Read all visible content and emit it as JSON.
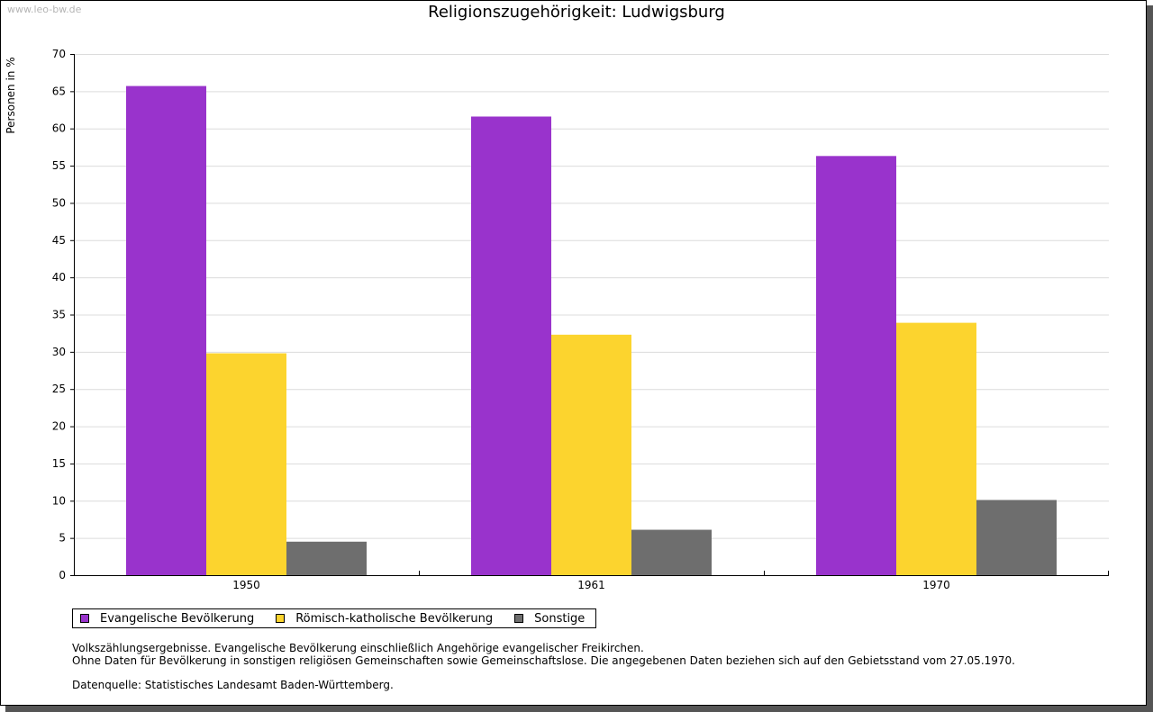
{
  "watermark": "www.leo-bw.de",
  "chart_data": {
    "type": "bar",
    "title": "Religionszugehörigkeit: Ludwigsburg",
    "xlabel": "",
    "ylabel": "Personen in %",
    "ylim": [
      0,
      70
    ],
    "yticks": [
      0,
      5,
      10,
      15,
      20,
      25,
      30,
      35,
      40,
      45,
      50,
      55,
      60,
      65,
      70
    ],
    "grid": true,
    "legend_position": "bottom-left",
    "categories": [
      "1950",
      "1961",
      "1970"
    ],
    "series": [
      {
        "name": "Evangelische Bevölkerung",
        "color": "#9933cc",
        "values": [
          65.7,
          61.6,
          56.3
        ]
      },
      {
        "name": "Römisch-katholische Bevölkerung",
        "color": "#fcd42e",
        "values": [
          29.8,
          32.3,
          33.9
        ]
      },
      {
        "name": "Sonstige",
        "color": "#6e6e6e",
        "values": [
          4.5,
          6.1,
          10.1
        ]
      }
    ]
  },
  "notes": {
    "line1": "Volkszählungsergebnisse. Evangelische Bevölkerung einschließlich Angehörige evangelischer Freikirchen.",
    "line2": "Ohne Daten für Bevölkerung in sonstigen religiösen Gemeinschaften sowie Gemeinschaftslose. Die angegebenen Daten beziehen sich auf den Gebietsstand vom 27.05.1970.",
    "source": "Datenquelle: Statistisches Landesamt Baden-Württemberg."
  }
}
